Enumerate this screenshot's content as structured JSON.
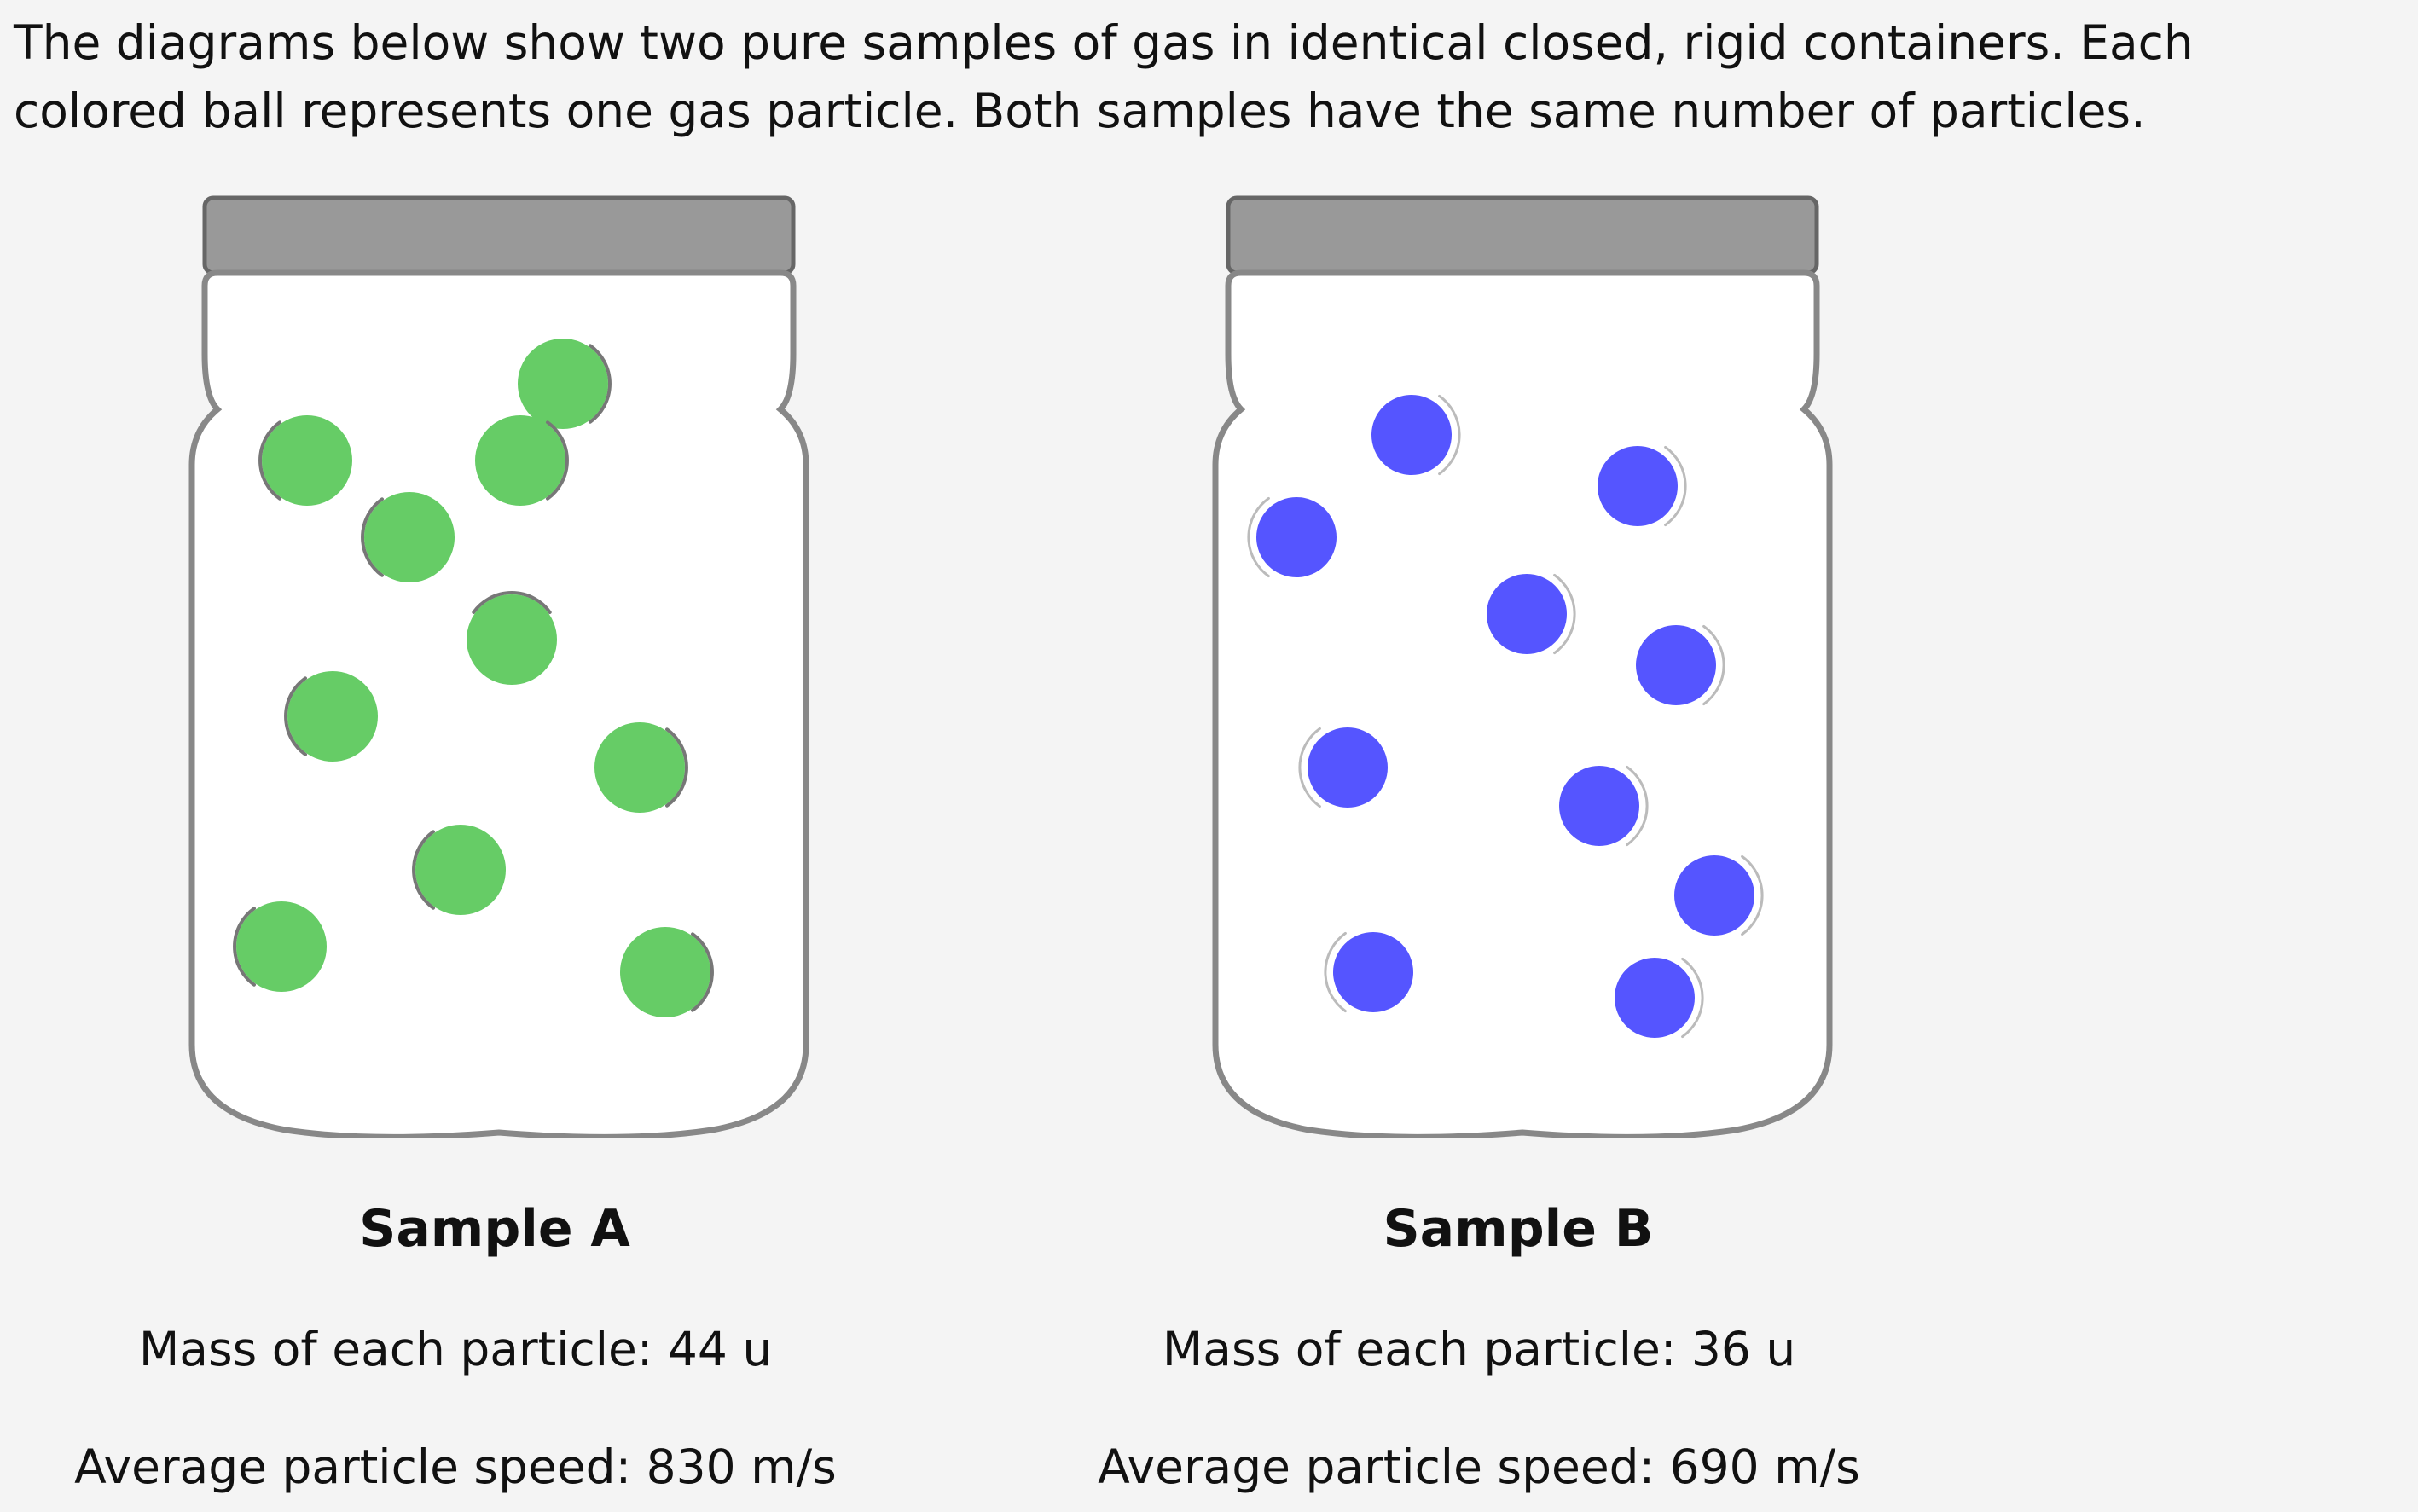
{
  "intro": {
    "line1": "The diagrams below show two pure samples of gas in identical closed, rigid containers. Each",
    "line2": "colored ball represents one gas particle. Both samples have the same number of particles."
  },
  "colors": {
    "particle_a": "#66cc66",
    "particle_b": "#5555ff",
    "lid": "#999999",
    "jar_outline": "#888888"
  },
  "samples": [
    {
      "title": "Sample A",
      "mass_label": "Mass of each particle",
      "mass_value": "44",
      "mass_unit": "u",
      "speed_label": "Average particle speed",
      "speed_value": "830",
      "speed_unit": "m/s"
    },
    {
      "title": "Sample B",
      "mass_label": "Mass of each particle",
      "mass_value": "36",
      "mass_unit": "u",
      "speed_label": "Average particle speed",
      "speed_value": "690",
      "speed_unit": "m/s"
    }
  ]
}
